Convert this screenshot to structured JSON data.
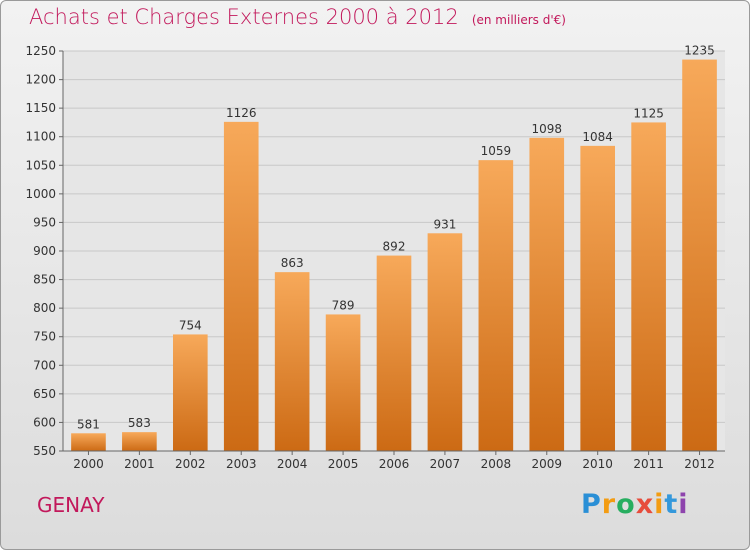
{
  "title": "Achats et Charges Externes 2000 à 2012",
  "subtitle": "(en milliers d'€)",
  "city": "GENAY",
  "logo": {
    "letters": [
      "P",
      "r",
      "o",
      "x",
      "i",
      "t",
      "i"
    ],
    "colors": [
      "#2a8fd6",
      "#f39c12",
      "#27ae60",
      "#e74c3c",
      "#f39c12",
      "#3498db",
      "#8e44ad"
    ]
  },
  "colors": {
    "bar_top": "#f7a95a",
    "bar_bottom": "#cc6a14",
    "title": "#c2185b",
    "grid": "#c8c8c8"
  },
  "chart_data": {
    "type": "bar",
    "categories": [
      "2000",
      "2001",
      "2002",
      "2003",
      "2004",
      "2005",
      "2006",
      "2007",
      "2008",
      "2009",
      "2010",
      "2011",
      "2012"
    ],
    "values": [
      581,
      583,
      754,
      1126,
      863,
      789,
      892,
      931,
      1059,
      1098,
      1084,
      1125,
      1235
    ],
    "title": "Achats et Charges Externes 2000 à 2012",
    "xlabel": "",
    "ylabel": "",
    "ylim": [
      550,
      1250
    ],
    "yticks": [
      550,
      600,
      650,
      700,
      750,
      800,
      850,
      900,
      950,
      1000,
      1050,
      1100,
      1150,
      1200,
      1250
    ],
    "grid": true,
    "legend": "none"
  }
}
